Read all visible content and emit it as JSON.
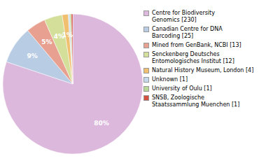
{
  "chart_data": {
    "type": "pie",
    "categories": [
      "Centre for Biodiversity\nGenomics [230]",
      "Canadian Centre for DNA\nBarcoding [25]",
      "Mined from GenBank, NCBI [13]",
      "Senckenberg Deutsches\nEntomologisches Institut [12]",
      "Natural History Museum, London [4]",
      "Unknown [1]",
      "University of Oulu [1]",
      "SNSB, Zoologische\nStaatssammlung Muenchen [1]"
    ],
    "values": [
      80.14,
      8.71,
      4.53,
      4.18,
      1.39,
      0.35,
      0.35,
      0.35
    ],
    "value_labels": [
      "80%",
      "9%",
      "5%",
      "4%",
      "1%",
      null,
      null,
      null
    ],
    "colors": [
      "#ddb8dd",
      "#b8cce4",
      "#e8a090",
      "#d4e09a",
      "#f0c070",
      "#c5d9ee",
      "#b8d898",
      "#d45040"
    ],
    "data_labels": true,
    "legend": "right"
  }
}
